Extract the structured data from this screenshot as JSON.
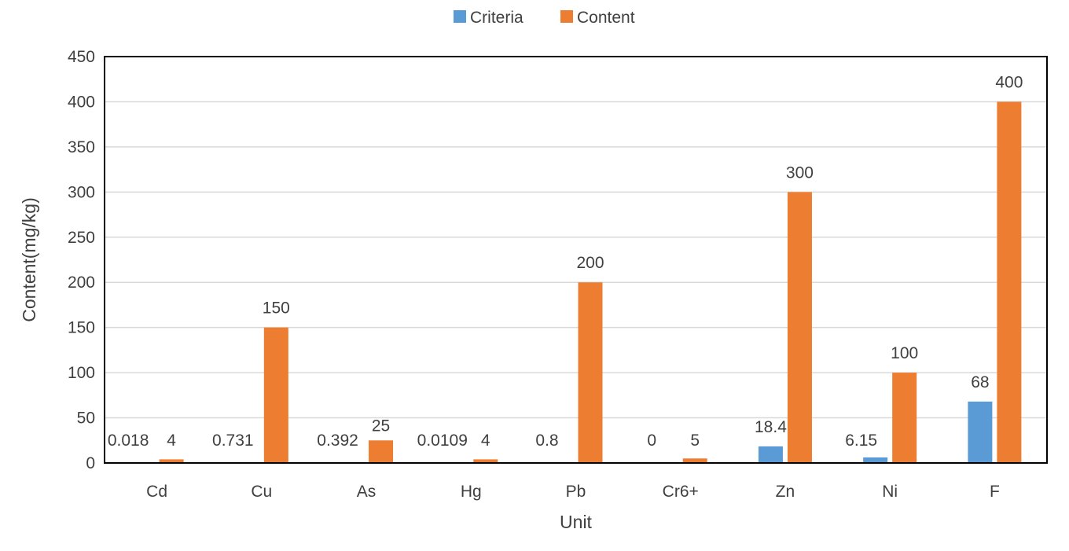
{
  "chart_data": {
    "type": "bar",
    "title": "",
    "xlabel": "Unit",
    "ylabel": "Content(mg/kg)",
    "ylim": [
      0,
      450
    ],
    "yticks": [
      0,
      50,
      100,
      150,
      200,
      250,
      300,
      350,
      400,
      450
    ],
    "grid": true,
    "legend_position": "top",
    "categories": [
      "Cd",
      "Cu",
      "As",
      "Hg",
      "Pb",
      "Cr6+",
      "Zn",
      "Ni",
      "F"
    ],
    "series": [
      {
        "name": "Criteria",
        "color": "#5B9BD5",
        "values": [
          0.018,
          0.731,
          0.392,
          0.0109,
          0.8,
          0,
          18.4,
          6.15,
          68
        ],
        "labels": [
          "0.018",
          "0.731",
          "0.392",
          "0.0109",
          "0.8",
          "0",
          "18.4",
          "6.15",
          "68"
        ]
      },
      {
        "name": "Content",
        "color": "#ED7D31",
        "values": [
          4,
          150,
          25,
          4,
          200,
          5,
          300,
          100,
          400
        ],
        "labels": [
          "4",
          "150",
          "25",
          "4",
          "200",
          "5",
          "300",
          "100",
          "400"
        ]
      }
    ]
  }
}
